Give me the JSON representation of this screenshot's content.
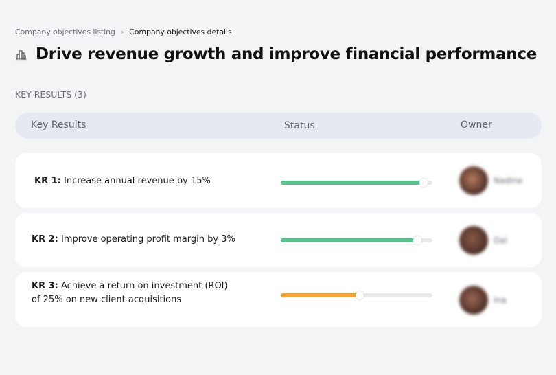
{
  "breadcrumb": {
    "parent": "Company objectives listing",
    "separator": "›",
    "current": "Company objectives details"
  },
  "objective": {
    "icon": "buildings-icon",
    "title": "Drive revenue growth and improve financial performance"
  },
  "key_results_section": {
    "label": "KEY RESULTS (3)"
  },
  "table": {
    "columns": [
      "Key Results",
      "Status",
      "Owner"
    ]
  },
  "key_results": [
    {
      "prefix": "KR 1:",
      "text": "Increase annual revenue by 15%",
      "progress": 94,
      "color": "#55c48b",
      "owner": "Nadine",
      "avatar_color": "#b97a5e"
    },
    {
      "prefix": "KR 2:",
      "text": "Improve operating profit margin by 3%",
      "progress": 90,
      "color": "#55c48b",
      "owner": "Dai",
      "avatar_color": "#8a5a48"
    },
    {
      "prefix": "KR 3:",
      "text": "Achieve a return on investment (ROI) of 25% on new client acquisitions",
      "progress": 52,
      "color": "#f7a52f",
      "owner": "Ina",
      "avatar_color": "#9a6552"
    }
  ],
  "colors": {
    "background": "#f3f4f6",
    "header_band": "#e5e9f2",
    "card": "#ffffff",
    "track": "#e8e8ea",
    "on_track": "#55c48b",
    "at_risk": "#f7a52f"
  }
}
